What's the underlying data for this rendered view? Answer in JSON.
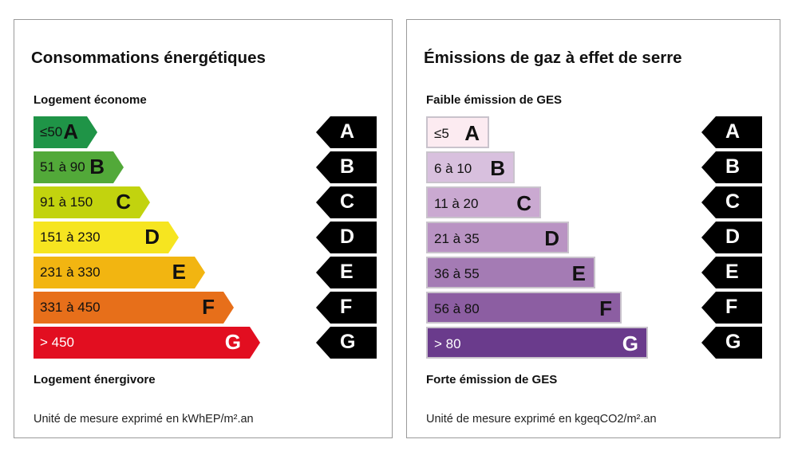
{
  "energy": {
    "title": "Consommations énergétiques",
    "top_label": "Logement économe",
    "bottom_label": "Logement énergivore",
    "unit": "Unité de mesure exprimé en kWhEP/m².an",
    "classes": [
      {
        "letter": "A",
        "range": "≤50",
        "color": "#1f9447"
      },
      {
        "letter": "B",
        "range": "51 à 90",
        "color": "#52a939"
      },
      {
        "letter": "C",
        "range": "91 à 150",
        "color": "#c2d30e"
      },
      {
        "letter": "D",
        "range": "151 à 230",
        "color": "#f6e520"
      },
      {
        "letter": "E",
        "range": "231 à 330",
        "color": "#f2b511"
      },
      {
        "letter": "F",
        "range": "331 à 450",
        "color": "#e76f1a"
      },
      {
        "letter": "G",
        "range": "> 450",
        "color": "#e20e20"
      }
    ]
  },
  "ges": {
    "title": "Émissions de gaz à effet de serre",
    "top_label": "Faible émission de GES",
    "bottom_label": "Forte émission de GES",
    "unit": "Unité de mesure exprimé en kgeqCO2/m².an",
    "classes": [
      {
        "letter": "A",
        "range": "≤5",
        "color": "#fcebf1"
      },
      {
        "letter": "B",
        "range": "6 à 10",
        "color": "#d8c0de"
      },
      {
        "letter": "C",
        "range": "11 à 20",
        "color": "#caa9d1"
      },
      {
        "letter": "D",
        "range": "21 à 35",
        "color": "#b993c3"
      },
      {
        "letter": "E",
        "range": "36 à 55",
        "color": "#a47bb4"
      },
      {
        "letter": "F",
        "range": "56 à 80",
        "color": "#8c5ea2"
      },
      {
        "letter": "G",
        "range": "> 80",
        "color": "#6a3b8c"
      }
    ]
  }
}
